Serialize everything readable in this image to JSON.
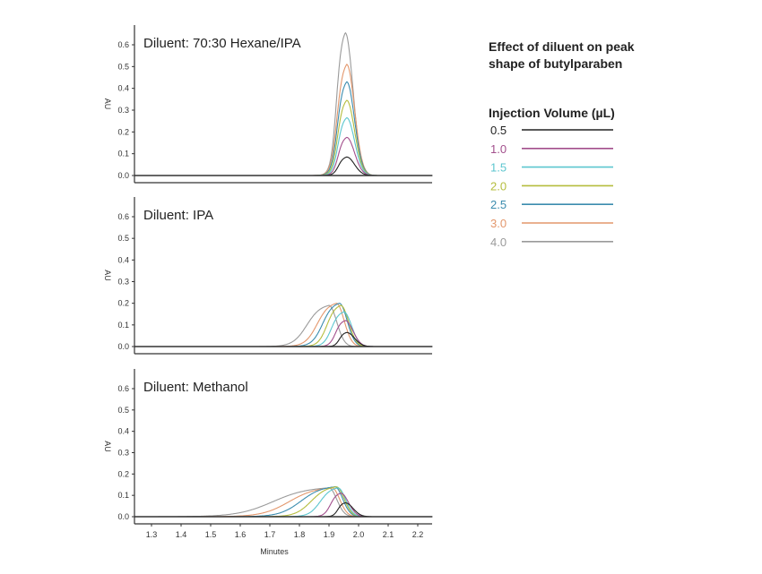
{
  "chart_data": {
    "type": "line",
    "title": "Effect of diluent on peak shape of butylparaben",
    "legend_title": "Injection Volume (µL)",
    "legend_placement": "right",
    "xlabel": "Minutes",
    "ylabel": "AU",
    "xlim": [
      1.24,
      2.25
    ],
    "ylim": [
      0.0,
      0.6
    ],
    "x_ticks": [
      "1.3",
      "1.4",
      "1.5",
      "1.6",
      "1.7",
      "1.8",
      "1.9",
      "2.0",
      "2.1",
      "2.2"
    ],
    "y_ticks": [
      "0.0",
      "0.1",
      "0.2",
      "0.3",
      "0.4",
      "0.5",
      "0.6"
    ],
    "grid": false,
    "series_meta": [
      {
        "name": "0.5",
        "color": "#222222"
      },
      {
        "name": "1.0",
        "color": "#a24f8c"
      },
      {
        "name": "1.5",
        "color": "#5cc6cf"
      },
      {
        "name": "2.0",
        "color": "#b5bd3e"
      },
      {
        "name": "2.5",
        "color": "#3b8cae"
      },
      {
        "name": "3.0",
        "color": "#e3976c"
      },
      {
        "name": "4.0",
        "color": "#9a9a9a"
      }
    ],
    "panels": [
      {
        "title": "Diluent: 70:30 Hexane/IPA",
        "series": [
          {
            "name": "0.5",
            "peak_min": 1.96,
            "peak_au": 0.085,
            "front_half_height_min": 1.932
          },
          {
            "name": "1.0",
            "peak_min": 1.96,
            "peak_au": 0.175,
            "front_half_height_min": 1.931
          },
          {
            "name": "1.5",
            "peak_min": 1.96,
            "peak_au": 0.265,
            "front_half_height_min": 1.93
          },
          {
            "name": "2.0",
            "peak_min": 1.96,
            "peak_au": 0.345,
            "front_half_height_min": 1.929
          },
          {
            "name": "2.5",
            "peak_min": 1.96,
            "peak_au": 0.43,
            "front_half_height_min": 1.928
          },
          {
            "name": "3.0",
            "peak_min": 1.96,
            "peak_au": 0.51,
            "front_half_height_min": 1.927
          },
          {
            "name": "4.0",
            "peak_min": 1.955,
            "peak_au": 0.655,
            "front_half_height_min": 1.925
          }
        ]
      },
      {
        "title": "Diluent: IPA",
        "series": [
          {
            "name": "0.5",
            "peak_min": 1.96,
            "peak_au": 0.065,
            "front_half_height_min": 1.935
          },
          {
            "name": "1.0",
            "peak_min": 1.955,
            "peak_au": 0.12,
            "front_half_height_min": 1.922
          },
          {
            "name": "1.5",
            "peak_min": 1.95,
            "peak_au": 0.16,
            "front_half_height_min": 1.908
          },
          {
            "name": "2.0",
            "peak_min": 1.94,
            "peak_au": 0.19,
            "front_half_height_min": 1.893
          },
          {
            "name": "2.5",
            "peak_min": 1.935,
            "peak_au": 0.2,
            "front_half_height_min": 1.878
          },
          {
            "name": "3.0",
            "peak_min": 1.925,
            "peak_au": 0.2,
            "front_half_height_min": 1.86
          },
          {
            "name": "4.0",
            "peak_min": 1.9,
            "peak_au": 0.19,
            "front_half_height_min": 1.825
          }
        ]
      },
      {
        "title": "Diluent: Methanol",
        "series": [
          {
            "name": "0.5",
            "peak_min": 1.955,
            "peak_au": 0.065,
            "front_half_height_min": 1.93
          },
          {
            "name": "1.0",
            "peak_min": 1.94,
            "peak_au": 0.11,
            "front_half_height_min": 1.905
          },
          {
            "name": "1.5",
            "peak_min": 1.93,
            "peak_au": 0.135,
            "front_half_height_min": 1.87
          },
          {
            "name": "2.0",
            "peak_min": 1.925,
            "peak_au": 0.14,
            "front_half_height_min": 1.84
          },
          {
            "name": "2.5",
            "peak_min": 1.92,
            "peak_au": 0.14,
            "front_half_height_min": 1.805
          },
          {
            "name": "3.0",
            "peak_min": 1.91,
            "peak_au": 0.135,
            "front_half_height_min": 1.765
          },
          {
            "name": "4.0",
            "peak_min": 1.9,
            "peak_au": 0.135,
            "front_half_height_min": 1.71
          }
        ]
      }
    ]
  }
}
